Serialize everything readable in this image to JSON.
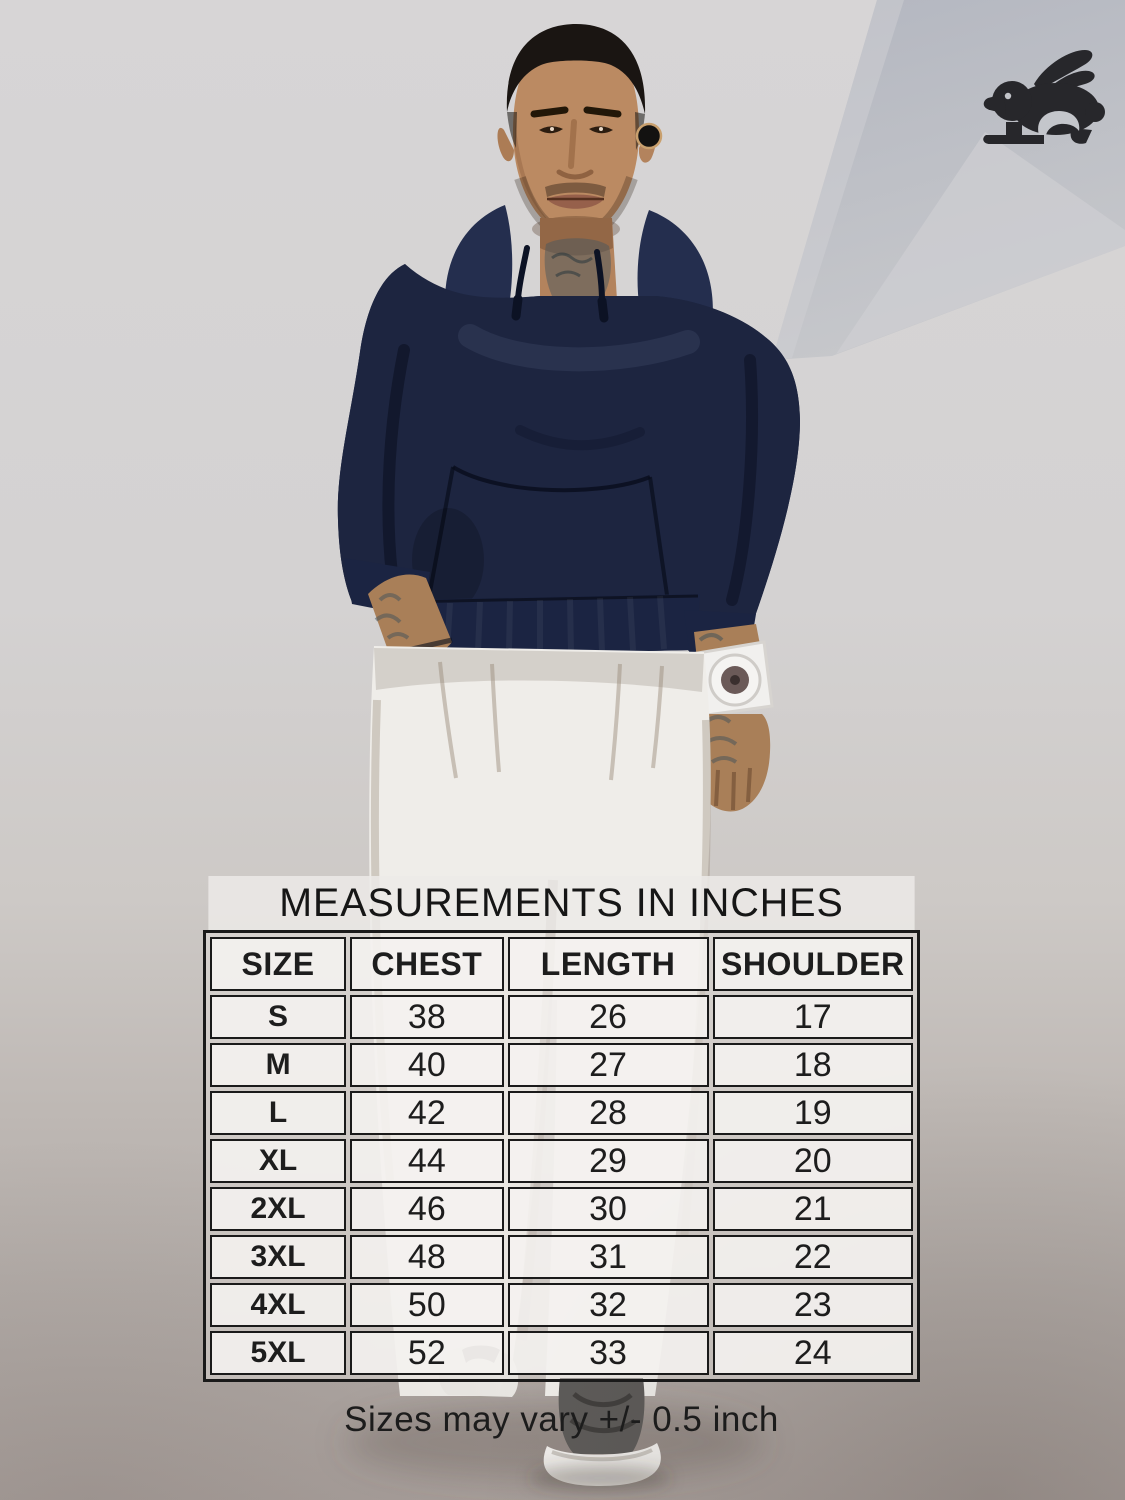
{
  "brand": {
    "logo_icon": "rabbit-icon",
    "logo_color": "#27272b"
  },
  "size_chart": {
    "title": "MEASUREMENTS IN INCHES",
    "columns": [
      "SIZE",
      "CHEST",
      "LENGTH",
      "SHOULDER"
    ],
    "rows": [
      [
        "S",
        "38",
        "26",
        "17"
      ],
      [
        "M",
        "40",
        "27",
        "18"
      ],
      [
        "L",
        "42",
        "28",
        "19"
      ],
      [
        "XL",
        "44",
        "29",
        "20"
      ],
      [
        "2XL",
        "46",
        "30",
        "21"
      ],
      [
        "3XL",
        "48",
        "31",
        "22"
      ],
      [
        "4XL",
        "50",
        "32",
        "23"
      ],
      [
        "5XL",
        "52",
        "33",
        "24"
      ]
    ],
    "footnote": "Sizes may vary +/- 0.5 inch"
  },
  "chart_data": {
    "type": "table",
    "title": "MEASUREMENTS IN INCHES",
    "columns": [
      "SIZE",
      "CHEST",
      "LENGTH",
      "SHOULDER"
    ],
    "rows": [
      [
        "S",
        38,
        26,
        17
      ],
      [
        "M",
        40,
        27,
        18
      ],
      [
        "L",
        42,
        28,
        19
      ],
      [
        "XL",
        44,
        29,
        20
      ],
      [
        "2XL",
        46,
        30,
        21
      ],
      [
        "3XL",
        48,
        31,
        22
      ],
      [
        "4XL",
        50,
        32,
        23
      ],
      [
        "5XL",
        52,
        33,
        24
      ]
    ],
    "footnote": "Sizes may vary +/- 0.5 inch",
    "units": "inches"
  },
  "scene": {
    "subject": "male model wearing navy pullover hoodie, white relaxed trousers, white chunky sneakers, white wristwatch",
    "colors": {
      "hoodie_navy": "#1d2540",
      "trousers_white": "#efede9",
      "backdrop_gray": "#d5d3d4",
      "floor_gray": "#b1aaa6",
      "wedge_gray": "#bfc2c9",
      "logo_black": "#27272b",
      "table_border": "#1a1a1a",
      "skin_tan": "#b3835d"
    }
  }
}
